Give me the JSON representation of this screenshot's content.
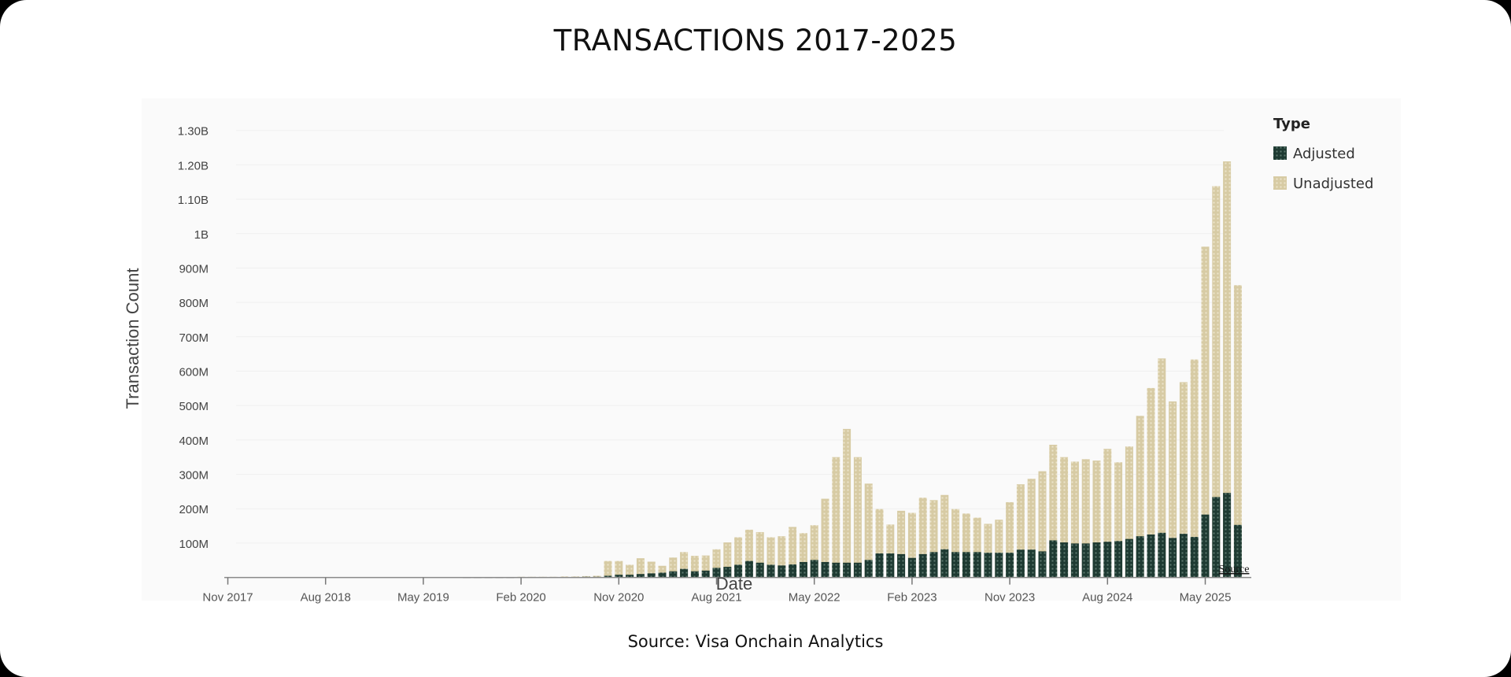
{
  "title": "TRANSACTIONS 2017-2025",
  "caption": "Source: Visa Onchain Analytics",
  "chart_data": {
    "type": "bar",
    "title": "",
    "xlabel": "Date",
    "ylabel": "Transaction Count",
    "ylim": [
      0,
      1300000000
    ],
    "y_ticks": [
      {
        "value": 100000000,
        "label": "100M"
      },
      {
        "value": 200000000,
        "label": "200M"
      },
      {
        "value": 300000000,
        "label": "300M"
      },
      {
        "value": 400000000,
        "label": "400M"
      },
      {
        "value": 500000000,
        "label": "500M"
      },
      {
        "value": 600000000,
        "label": "600M"
      },
      {
        "value": 700000000,
        "label": "700M"
      },
      {
        "value": 800000000,
        "label": "800M"
      },
      {
        "value": 900000000,
        "label": "900M"
      },
      {
        "value": 1000000000,
        "label": "1B"
      },
      {
        "value": 1100000000,
        "label": "1.10B"
      },
      {
        "value": 1200000000,
        "label": "1.20B"
      },
      {
        "value": 1300000000,
        "label": "1.30B"
      }
    ],
    "x_ticks": [
      {
        "value": "2017-11",
        "label": "Nov 2017"
      },
      {
        "value": "2018-08",
        "label": "Aug 2018"
      },
      {
        "value": "2019-05",
        "label": "May 2019"
      },
      {
        "value": "2020-02",
        "label": "Feb 2020"
      },
      {
        "value": "2020-11",
        "label": "Nov 2020"
      },
      {
        "value": "2021-08",
        "label": "Aug 2021"
      },
      {
        "value": "2022-05",
        "label": "May 2022"
      },
      {
        "value": "2023-02",
        "label": "Feb 2023"
      },
      {
        "value": "2023-11",
        "label": "Nov 2023"
      },
      {
        "value": "2024-08",
        "label": "Aug 2024"
      },
      {
        "value": "2025-05",
        "label": "May 2025"
      }
    ],
    "x_start": "2017-11",
    "legend": {
      "title": "Type",
      "position": "top-right"
    },
    "colors": {
      "Adjusted": "#1e3a32",
      "Unadjusted": "#d7cba4"
    },
    "grid": true,
    "source_link": "Source",
    "categories": [
      "2019-09",
      "2019-10",
      "2019-11",
      "2019-12",
      "2020-01",
      "2020-02",
      "2020-03",
      "2020-04",
      "2020-05",
      "2020-06",
      "2020-07",
      "2020-08",
      "2020-09",
      "2020-10",
      "2020-11",
      "2020-12",
      "2021-01",
      "2021-02",
      "2021-03",
      "2021-04",
      "2021-05",
      "2021-06",
      "2021-07",
      "2021-08",
      "2021-09",
      "2021-10",
      "2021-11",
      "2021-12",
      "2022-01",
      "2022-02",
      "2022-03",
      "2022-04",
      "2022-05",
      "2022-06",
      "2022-07",
      "2022-08",
      "2022-09",
      "2022-10",
      "2022-11",
      "2022-12",
      "2023-01",
      "2023-02",
      "2023-03",
      "2023-04",
      "2023-05",
      "2023-06",
      "2023-07",
      "2023-08",
      "2023-09",
      "2023-10",
      "2023-11",
      "2023-12",
      "2024-01",
      "2024-02",
      "2024-03",
      "2024-04",
      "2024-05",
      "2024-06",
      "2024-07",
      "2024-08",
      "2024-09",
      "2024-10",
      "2024-11",
      "2024-12",
      "2025-01",
      "2025-02",
      "2025-03",
      "2025-04",
      "2025-05",
      "2025-06",
      "2025-07",
      "2025-08"
    ],
    "series": [
      {
        "name": "Unadjusted",
        "values": [
          1,
          1,
          1,
          1,
          1,
          2,
          2,
          2,
          2,
          3,
          3,
          4,
          5,
          48,
          48,
          37,
          56,
          46,
          34,
          58,
          74,
          63,
          64,
          82,
          102,
          117,
          139,
          132,
          117,
          120,
          147,
          129,
          152,
          229,
          350,
          432,
          350,
          273,
          199,
          154,
          194,
          188,
          232,
          225,
          240,
          199,
          186,
          174,
          156,
          168,
          219,
          271,
          287,
          309,
          386,
          350,
          337,
          344,
          340,
          374,
          335,
          381,
          470,
          551,
          637,
          512,
          568,
          634,
          962,
          1138,
          1210,
          850
        ]
      },
      {
        "name": "Adjusted",
        "values": [
          0.5,
          0.5,
          0.5,
          0.5,
          0.5,
          1,
          1,
          1,
          1,
          1,
          1.5,
          2,
          2,
          5,
          8,
          8,
          10,
          12,
          14,
          18,
          25,
          18,
          20,
          28,
          31,
          37,
          48,
          43,
          37,
          35,
          38,
          45,
          51,
          45,
          43,
          43,
          43,
          51,
          70,
          70,
          68,
          57,
          68,
          74,
          82,
          74,
          74,
          74,
          72,
          72,
          72,
          81,
          81,
          76,
          108,
          102,
          99,
          99,
          102,
          104,
          106,
          112,
          120,
          125,
          130,
          115,
          127,
          118,
          183,
          234,
          246,
          153
        ]
      }
    ],
    "value_unit": "millions"
  }
}
